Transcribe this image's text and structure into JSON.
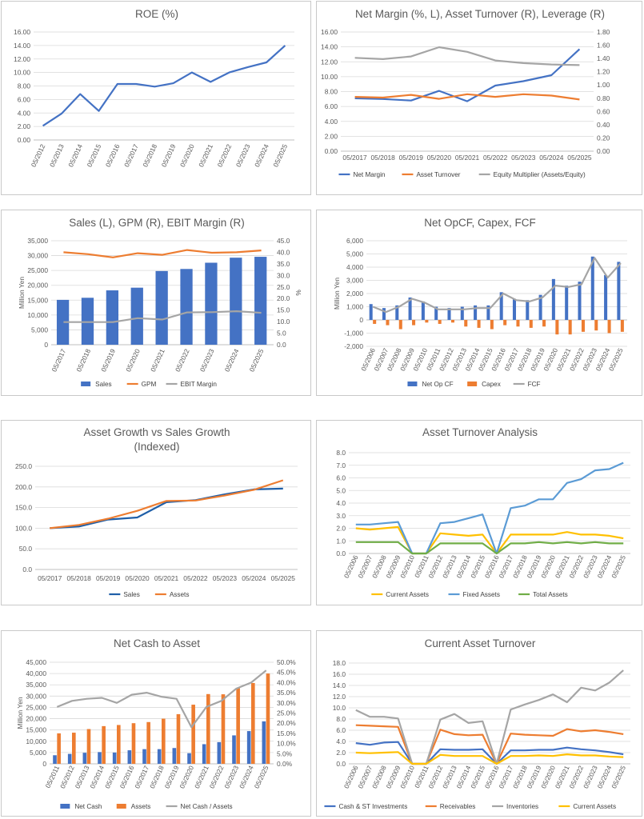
{
  "colors": {
    "blue": "#4472c4",
    "orange": "#ed7d31",
    "gray": "#a5a5a5",
    "yellow": "#ffc000",
    "lightblue": "#5b9bd5",
    "green": "#70ad47",
    "darkblue": "#1f5fa8",
    "red_tick": "#ff0000"
  },
  "chart_data": [
    {
      "type": "line",
      "title": "ROE (%)",
      "x": [
        "05/2012",
        "05/2013",
        "05/2014",
        "05/2015",
        "05/2016",
        "05/2017",
        "05/2018",
        "05/2019",
        "05/2020",
        "05/2021",
        "05/2022",
        "05/2023",
        "05/2024",
        "05/2025"
      ],
      "series": [
        {
          "values": [
            2.1,
            3.9,
            6.8,
            4.3,
            8.3,
            8.3,
            7.9,
            8.4,
            10.0,
            8.6,
            10.0,
            10.8,
            11.5,
            14.0
          ]
        }
      ],
      "ylim": [
        0,
        16
      ],
      "yticks": [
        "0.00",
        "2.00",
        "4.00",
        "6.00",
        "8.00",
        "10.00",
        "12.00",
        "14.00",
        "16.00"
      ],
      "grid": true
    },
    {
      "type": "line",
      "title": "Net Margin (%, L), Asset Turnover (R), Leverage (R)",
      "x": [
        "05/2017",
        "05/2018",
        "05/2019",
        "05/2020",
        "05/2021",
        "05/2022",
        "05/2023",
        "05/2024",
        "05/2025"
      ],
      "series": [
        {
          "name": "Net Margin",
          "axis": "left",
          "values": [
            7.1,
            7.0,
            6.8,
            8.1,
            6.7,
            8.8,
            9.4,
            10.2,
            13.7
          ]
        },
        {
          "name": "Asset Turnover",
          "axis": "right",
          "values": [
            0.82,
            0.81,
            0.85,
            0.79,
            0.86,
            0.82,
            0.86,
            0.84,
            0.78
          ]
        },
        {
          "name": "Equity Multiplier (Assets/Equity)",
          "axis": "right",
          "values": [
            1.41,
            1.39,
            1.43,
            1.57,
            1.5,
            1.37,
            1.33,
            1.31,
            1.3
          ]
        }
      ],
      "ylim": [
        0,
        16
      ],
      "y2lim": [
        0,
        1.8
      ],
      "yticks": [
        "0.00",
        "2.00",
        "4.00",
        "6.00",
        "8.00",
        "10.00",
        "12.00",
        "14.00",
        "16.00"
      ],
      "y2ticks": [
        "0.00",
        "0.20",
        "0.40",
        "0.60",
        "0.80",
        "1.00",
        "1.20",
        "1.40",
        "1.60",
        "1.80"
      ],
      "grid": true,
      "legend": "bottom"
    },
    {
      "type": "bar",
      "title": "Sales (L), GPM (R), EBIT Margin (R)",
      "categories": [
        "05/2017",
        "05/2018",
        "05/2019",
        "05/2020",
        "05/2021",
        "05/2022",
        "05/2023",
        "05/2024",
        "05/2025"
      ],
      "series": [
        {
          "name": "Sales",
          "type": "bar",
          "axis": "left",
          "values": [
            15100,
            15800,
            18300,
            19200,
            24800,
            25500,
            27600,
            29300,
            29600
          ]
        },
        {
          "name": "GPM",
          "type": "line",
          "axis": "right",
          "values": [
            40.0,
            39.2,
            37.8,
            39.6,
            38.9,
            41.0,
            39.8,
            40.0,
            40.8
          ]
        },
        {
          "name": "EBIT Margin",
          "type": "line",
          "axis": "right",
          "values": [
            9.8,
            9.8,
            9.8,
            11.5,
            10.9,
            14.0,
            14.1,
            14.5,
            13.8
          ]
        }
      ],
      "ylabel": "Million Yen",
      "y2label": "%",
      "ylim": [
        0,
        35000
      ],
      "y2lim": [
        0,
        45
      ],
      "yticks": [
        "0",
        "5,000",
        "10,000",
        "15,000",
        "20,000",
        "25,000",
        "30,000",
        "35,000"
      ],
      "y2ticks": [
        "0.0",
        "5.0",
        "10.0",
        "15.0",
        "20.0",
        "25.0",
        "30.0",
        "35.0",
        "40.0",
        "45.0"
      ],
      "legend": "bottom"
    },
    {
      "type": "bar",
      "title": "Net OpCF, Capex, FCF",
      "categories": [
        "05/2006",
        "05/2007",
        "05/2008",
        "05/2009",
        "05/2010",
        "05/2011",
        "05/2012",
        "05/2013",
        "05/2014",
        "05/2015",
        "05/2016",
        "05/2017",
        "05/2018",
        "05/2019",
        "05/2020",
        "05/2021",
        "05/2022",
        "05/2023",
        "05/2024",
        "05/2025"
      ],
      "series": [
        {
          "name": "Net Op CF",
          "type": "bar",
          "values": [
            1200,
            900,
            1100,
            1700,
            1400,
            1000,
            900,
            1000,
            1100,
            1100,
            2100,
            1600,
            1500,
            1900,
            3100,
            2600,
            2900,
            4800,
            3400,
            4400
          ]
        },
        {
          "name": "Capex",
          "type": "bar",
          "values": [
            -300,
            -400,
            -700,
            -400,
            -200,
            -300,
            -200,
            -500,
            -600,
            -700,
            -400,
            -500,
            -600,
            -500,
            -1100,
            -1100,
            -900,
            -800,
            -1000,
            -900
          ]
        },
        {
          "name": "FCF",
          "type": "line",
          "values": [
            1000,
            600,
            1000,
            1600,
            1300,
            800,
            800,
            800,
            900,
            900,
            2000,
            1500,
            1400,
            1700,
            2600,
            2500,
            2700,
            4700,
            3200,
            4300
          ]
        }
      ],
      "ylabel": "Million Yen",
      "ylim": [
        -2000,
        6000
      ],
      "yticks": [
        "-2,000",
        "-1,000",
        "0",
        "1,000",
        "2,000",
        "3,000",
        "4,000",
        "5,000",
        "6,000"
      ],
      "legend": "bottom"
    },
    {
      "type": "line",
      "title": "Asset Growth vs Sales Growth (Indexed)",
      "x": [
        "05/2017",
        "05/2018",
        "05/2019",
        "05/2020",
        "05/2021",
        "05/2022",
        "05/2023",
        "05/2024",
        "05/2025"
      ],
      "series": [
        {
          "name": "Sales",
          "values": [
            100,
            104,
            121,
            126,
            163,
            168,
            182,
            194,
            196
          ]
        },
        {
          "name": "Assets",
          "values": [
            100,
            108,
            123,
            142,
            166,
            167,
            179,
            193,
            216
          ]
        }
      ],
      "ylim": [
        0,
        250
      ],
      "yticks": [
        "0.0",
        "50.0",
        "100.0",
        "150.0",
        "200.0",
        "250.0"
      ],
      "legend": "bottom"
    },
    {
      "type": "line",
      "title": "Asset Turnover Analysis",
      "x": [
        "05/2006",
        "05/2007",
        "05/2008",
        "05/2009",
        "05/2010",
        "05/2011",
        "05/2012",
        "05/2013",
        "05/2014",
        "05/2015",
        "05/2016",
        "05/2017",
        "05/2018",
        "05/2019",
        "05/2020",
        "05/2021",
        "05/2022",
        "05/2023",
        "05/2024",
        "05/2025"
      ],
      "series": [
        {
          "name": "Current Assets",
          "values": [
            2.0,
            1.9,
            2.0,
            2.1,
            0,
            0,
            1.6,
            1.5,
            1.4,
            1.5,
            0,
            1.5,
            1.5,
            1.5,
            1.5,
            1.7,
            1.5,
            1.5,
            1.4,
            1.2
          ]
        },
        {
          "name": "Fixed Assets",
          "values": [
            2.3,
            2.3,
            2.4,
            2.5,
            0,
            0,
            2.4,
            2.5,
            2.8,
            3.1,
            0,
            3.6,
            3.8,
            4.3,
            4.3,
            5.6,
            5.9,
            6.6,
            6.7,
            7.2
          ]
        },
        {
          "name": "Total Assets",
          "values": [
            0.9,
            0.9,
            0.9,
            0.9,
            0,
            0,
            0.8,
            0.8,
            0.8,
            0.8,
            0,
            0.8,
            0.8,
            0.9,
            0.8,
            0.9,
            0.8,
            0.9,
            0.8,
            0.8
          ]
        }
      ],
      "ylim": [
        0,
        8
      ],
      "yticks": [
        "0.0",
        "1.0",
        "2.0",
        "3.0",
        "4.0",
        "5.0",
        "6.0",
        "7.0",
        "8.0"
      ],
      "legend": "bottom"
    },
    {
      "type": "bar",
      "title": "Net Cash to Asset",
      "categories": [
        "05/2011",
        "05/2012",
        "05/2013",
        "05/2014",
        "05/2015",
        "05/2016",
        "05/2017",
        "05/2018",
        "05/2019",
        "05/2020",
        "05/2021",
        "05/2022",
        "05/2023",
        "05/2024",
        "05/2025"
      ],
      "series": [
        {
          "name": "Net Cash",
          "type": "bar",
          "axis": "left",
          "values": [
            3800,
            4400,
            4900,
            5200,
            5000,
            6000,
            6500,
            6500,
            7000,
            4700,
            8700,
            9600,
            12600,
            14500,
            18800
          ]
        },
        {
          "name": "Assets",
          "type": "bar",
          "axis": "left",
          "values": [
            13500,
            13800,
            15400,
            16700,
            17200,
            18000,
            18500,
            20000,
            22000,
            26200,
            30900,
            30800,
            33500,
            35800,
            40000
          ]
        },
        {
          "name": "Net Cash / Assets",
          "type": "line",
          "axis": "right",
          "values": [
            28,
            31,
            32,
            32.5,
            30,
            34,
            35,
            33,
            32,
            18,
            28,
            31,
            37,
            40,
            46
          ]
        }
      ],
      "ylabel": "Million Yen",
      "ylim": [
        0,
        45000
      ],
      "y2lim": [
        0,
        50
      ],
      "yticks": [
        "0",
        "5,000",
        "10,000",
        "15,000",
        "20,000",
        "25,000",
        "30,000",
        "35,000",
        "40,000",
        "45,000"
      ],
      "y2ticks": [
        "0.0%",
        "5.0%",
        "10.0%",
        "15.0%",
        "20.0%",
        "25.0%",
        "30.0%",
        "35.0%",
        "40.0%",
        "45.0%",
        "50.0%"
      ],
      "legend": "bottom"
    },
    {
      "type": "line",
      "title": "Current Asset Turnover",
      "x": [
        "05/2006",
        "05/2007",
        "05/2008",
        "05/2009",
        "05/2010",
        "05/2011",
        "05/2012",
        "05/2013",
        "05/2014",
        "05/2015",
        "05/2016",
        "05/2017",
        "05/2018",
        "05/2019",
        "05/2020",
        "05/2021",
        "05/2022",
        "05/2023",
        "05/2024",
        "05/2025"
      ],
      "series": [
        {
          "name": "Cash & ST Investments",
          "values": [
            3.7,
            3.4,
            3.8,
            3.9,
            0,
            0,
            2.6,
            2.5,
            2.5,
            2.6,
            0,
            2.4,
            2.4,
            2.5,
            2.5,
            2.9,
            2.6,
            2.4,
            2.1,
            1.7
          ]
        },
        {
          "name": "Receivables",
          "values": [
            6.9,
            6.8,
            6.7,
            6.6,
            0,
            0,
            6.1,
            5.3,
            5.1,
            5.2,
            0,
            5.4,
            5.2,
            5.1,
            5.0,
            6.2,
            5.8,
            6.0,
            5.7,
            5.3
          ]
        },
        {
          "name": "Inventories",
          "values": [
            9.6,
            8.4,
            8.4,
            8.1,
            0,
            0,
            7.9,
            8.9,
            7.3,
            7.6,
            0,
            9.7,
            10.6,
            11.4,
            12.4,
            11.0,
            13.6,
            13.1,
            14.5,
            16.7
          ]
        },
        {
          "name": "Current Assets",
          "values": [
            2.0,
            1.9,
            2.0,
            2.1,
            0,
            0,
            1.6,
            1.4,
            1.4,
            1.4,
            0,
            1.4,
            1.4,
            1.5,
            1.4,
            1.7,
            1.5,
            1.5,
            1.3,
            1.2
          ]
        }
      ],
      "ylim": [
        0,
        18
      ],
      "yticks": [
        "0.0",
        "2.0",
        "4.0",
        "6.0",
        "8.0",
        "10.0",
        "12.0",
        "14.0",
        "16.0",
        "18.0"
      ],
      "legend": "bottom"
    }
  ]
}
